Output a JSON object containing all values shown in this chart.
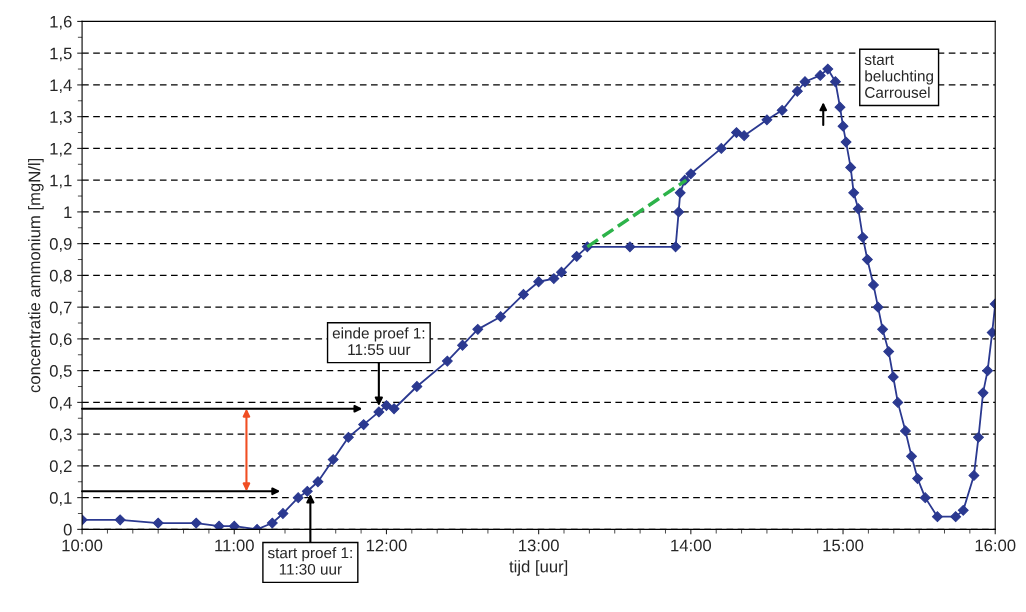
{
  "chart_data": {
    "type": "line",
    "xlabel": "tijd [uur]",
    "ylabel": "concentratie ammonium [mgN/l]",
    "xlim": [
      10,
      16
    ],
    "ylim": [
      0,
      1.6
    ],
    "xticks": [
      {
        "value": 10,
        "label": "10:00"
      },
      {
        "value": 11,
        "label": "11:00"
      },
      {
        "value": 12,
        "label": "12:00"
      },
      {
        "value": 13,
        "label": "13:00"
      },
      {
        "value": 14,
        "label": "14:00"
      },
      {
        "value": 15,
        "label": "15:00"
      },
      {
        "value": 16,
        "label": "16:00"
      }
    ],
    "yticks": [
      0,
      {
        "value": 0.1,
        "label": "0,1"
      },
      {
        "value": 0.2,
        "label": "0,2"
      },
      {
        "value": 0.3,
        "label": "0,3"
      },
      {
        "value": 0.4,
        "label": "0,4"
      },
      {
        "value": 0.5,
        "label": "0,5"
      },
      {
        "value": 0.6,
        "label": "0,6"
      },
      {
        "value": 0.7,
        "label": "0,7"
      },
      {
        "value": 0.8,
        "label": "0,8"
      },
      {
        "value": 0.9,
        "label": "0,9"
      },
      1,
      {
        "value": 1.1,
        "label": "1,1"
      },
      {
        "value": 1.2,
        "label": "1,2"
      },
      {
        "value": 1.3,
        "label": "1,3"
      },
      {
        "value": 1.4,
        "label": "1,4"
      },
      {
        "value": 1.5,
        "label": "1,5"
      },
      {
        "value": 1.6,
        "label": "1,6"
      }
    ],
    "grid": "y",
    "legend": false,
    "series": [
      {
        "color": "#2b3990",
        "marker": "diamond",
        "line_style": "solid",
        "x": [
          10.0,
          10.25,
          10.5,
          10.75,
          10.9,
          11.0,
          11.15,
          11.25,
          11.32,
          11.42,
          11.48,
          11.55,
          11.65,
          11.75,
          11.85,
          11.95,
          12.0,
          12.05,
          12.2,
          12.4,
          12.5,
          12.6,
          12.75,
          12.9,
          13.0,
          13.1,
          13.15,
          13.25,
          13.32,
          13.6,
          13.9,
          13.92,
          13.93,
          13.96,
          14.0,
          14.2,
          14.3,
          14.35,
          14.5,
          14.6,
          14.7,
          14.75,
          14.85,
          14.9,
          14.95,
          14.98,
          15.0,
          15.02,
          15.05,
          15.07,
          15.1,
          15.13,
          15.16,
          15.2,
          15.23,
          15.26,
          15.3,
          15.33,
          15.36,
          15.41,
          15.45,
          15.49,
          15.54,
          15.62,
          15.74,
          15.79,
          15.86,
          15.89,
          15.92,
          15.95,
          15.98,
          16.0
        ],
        "values": [
          0.03,
          0.03,
          0.02,
          0.02,
          0.01,
          0.01,
          0.0,
          0.02,
          0.05,
          0.1,
          0.12,
          0.15,
          0.22,
          0.29,
          0.33,
          0.37,
          0.39,
          0.38,
          0.45,
          0.53,
          0.58,
          0.63,
          0.67,
          0.74,
          0.78,
          0.79,
          0.81,
          0.86,
          0.89,
          0.89,
          0.89,
          1.0,
          1.06,
          1.1,
          1.12,
          1.2,
          1.25,
          1.24,
          1.29,
          1.32,
          1.38,
          1.41,
          1.43,
          1.45,
          1.41,
          1.33,
          1.27,
          1.22,
          1.14,
          1.06,
          1.01,
          0.92,
          0.85,
          0.77,
          0.7,
          0.63,
          0.56,
          0.48,
          0.4,
          0.31,
          0.23,
          0.16,
          0.1,
          0.04,
          0.04,
          0.06,
          0.17,
          0.29,
          0.43,
          0.5,
          0.62,
          0.71
        ]
      },
      {
        "type": "line",
        "color": "#2db34a",
        "marker": "none",
        "line_style": "dashed",
        "x": [
          13.32,
          13.97
        ],
        "values": [
          0.89,
          1.1
        ]
      }
    ],
    "annotations": [
      {
        "text": "einde proef 1:\n11:55 uur",
        "x": 11.95,
        "y": 0.38
      },
      {
        "text": "start proef 1:\n11:30 uur",
        "x": 11.5,
        "y": 0.12
      },
      {
        "text": "start\nbeluchting\nCarrousel",
        "x": 14.9,
        "y": 1.45
      }
    ]
  }
}
